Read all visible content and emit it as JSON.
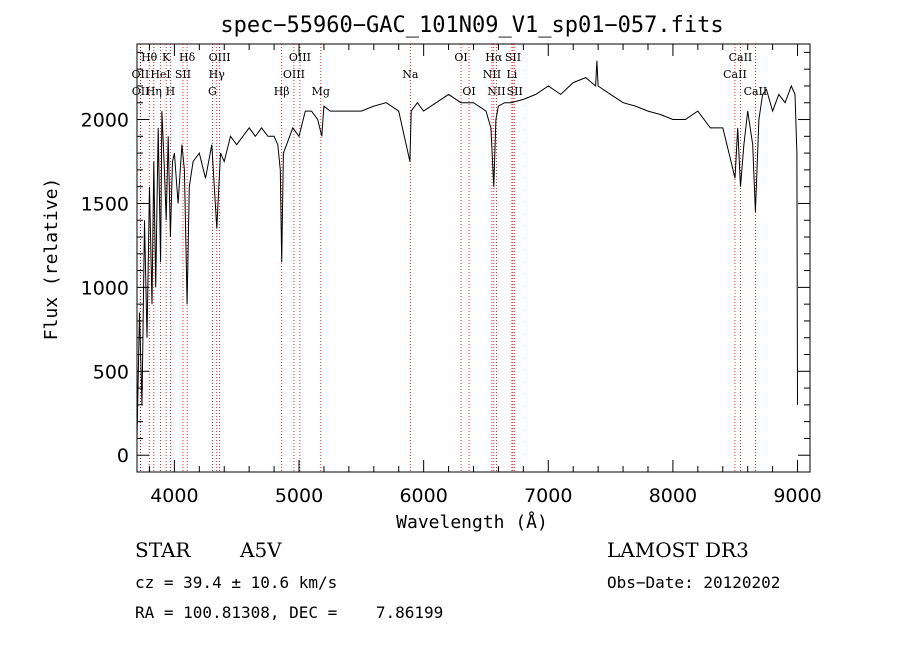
{
  "chart_data": {
    "type": "line",
    "title": "spec−55960−GAC_101N09_V1_sp01−057.fits",
    "xlabel": "Wavelength (Å)",
    "ylabel": "Flux (relative)",
    "xlim": [
      3700,
      9100
    ],
    "ylim": [
      -100,
      2450
    ],
    "xticks": [
      4000,
      5000,
      6000,
      7000,
      8000,
      9000
    ],
    "yticks": [
      0,
      500,
      1000,
      1500,
      2000
    ],
    "series": [
      {
        "name": "spectrum",
        "x": [
          3700,
          3720,
          3740,
          3760,
          3780,
          3800,
          3820,
          3835,
          3850,
          3870,
          3889,
          3900,
          3920,
          3934,
          3950,
          3968,
          3985,
          4000,
          4030,
          4060,
          4080,
          4102,
          4120,
          4150,
          4200,
          4250,
          4300,
          4340,
          4370,
          4400,
          4450,
          4500,
          4550,
          4600,
          4650,
          4700,
          4750,
          4800,
          4830,
          4850,
          4861,
          4875,
          4900,
          4950,
          5000,
          5050,
          5100,
          5150,
          5183,
          5200,
          5250,
          5300,
          5400,
          5500,
          5600,
          5700,
          5800,
          5890,
          5900,
          5950,
          6000,
          6100,
          6200,
          6300,
          6400,
          6500,
          6540,
          6563,
          6580,
          6600,
          6650,
          6700,
          6800,
          6900,
          7000,
          7100,
          7200,
          7300,
          7380,
          7390,
          7400,
          7500,
          7600,
          7700,
          7800,
          7900,
          8000,
          8100,
          8200,
          8300,
          8400,
          8450,
          8498,
          8520,
          8542,
          8570,
          8600,
          8640,
          8662,
          8690,
          8720,
          8750,
          8800,
          8850,
          8900,
          8950,
          8980,
          8995,
          9000
        ],
        "y": [
          100,
          850,
          300,
          1400,
          700,
          1600,
          900,
          1750,
          1000,
          1950,
          1150,
          2050,
          1700,
          1400,
          1900,
          1300,
          1750,
          1800,
          1500,
          1850,
          1700,
          900,
          1600,
          1750,
          1800,
          1650,
          1850,
          1350,
          1800,
          1750,
          1900,
          1850,
          1900,
          1950,
          1900,
          1950,
          1900,
          1900,
          1850,
          1700,
          1150,
          1800,
          1850,
          1950,
          1900,
          2050,
          2050,
          2000,
          1900,
          2080,
          2050,
          2050,
          2050,
          2050,
          2080,
          2100,
          2050,
          1750,
          2050,
          2100,
          2050,
          2100,
          2150,
          2100,
          2100,
          2050,
          1950,
          1600,
          2000,
          2080,
          2100,
          2100,
          2120,
          2150,
          2200,
          2150,
          2220,
          2250,
          2200,
          2350,
          2200,
          2150,
          2100,
          2080,
          2050,
          2030,
          2000,
          2000,
          2050,
          1950,
          1950,
          1800,
          1650,
          1950,
          1600,
          1850,
          2050,
          1850,
          1450,
          2000,
          2150,
          2180,
          2050,
          2150,
          2100,
          2200,
          2150,
          1800,
          300
        ]
      }
    ],
    "lines": [
      {
        "label": "Hθ",
        "wl": 3798,
        "row": 1
      },
      {
        "label": "OII",
        "wl": 3727,
        "row": 2
      },
      {
        "label": "OII",
        "wl": 3729,
        "row": 3
      },
      {
        "label": "Hη",
        "wl": 3835,
        "row": 3
      },
      {
        "label": "K",
        "wl": 3934,
        "row": 1
      },
      {
        "label": "HeI",
        "wl": 3889,
        "row": 2
      },
      {
        "label": "H",
        "wl": 3968,
        "row": 3
      },
      {
        "label": "SII",
        "wl": 4069,
        "row": 2
      },
      {
        "label": "Hδ",
        "wl": 4102,
        "row": 1
      },
      {
        "label": "OIII",
        "wl": 4363,
        "row": 1
      },
      {
        "label": "Hγ",
        "wl": 4340,
        "row": 2
      },
      {
        "label": "G",
        "wl": 4305,
        "row": 3
      },
      {
        "label": "Hβ",
        "wl": 4861,
        "row": 3
      },
      {
        "label": "OIII",
        "wl": 5007,
        "row": 1
      },
      {
        "label": "OIII",
        "wl": 4959,
        "row": 2
      },
      {
        "label": "Mg",
        "wl": 5175,
        "row": 3
      },
      {
        "label": "Na",
        "wl": 5893,
        "row": 2
      },
      {
        "label": "OI",
        "wl": 6300,
        "row": 1
      },
      {
        "label": "OI",
        "wl": 6364,
        "row": 3
      },
      {
        "label": "Hα",
        "wl": 6563,
        "row": 1
      },
      {
        "label": "NII",
        "wl": 6548,
        "row": 2
      },
      {
        "label": "NII",
        "wl": 6584,
        "row": 3
      },
      {
        "label": "SII",
        "wl": 6717,
        "row": 1
      },
      {
        "label": "Li",
        "wl": 6708,
        "row": 2
      },
      {
        "label": "SII",
        "wl": 6731,
        "row": 3
      },
      {
        "label": "CaII",
        "wl": 8542,
        "row": 1
      },
      {
        "label": "CaII",
        "wl": 8498,
        "row": 2
      },
      {
        "label": "CaII",
        "wl": 8662,
        "row": 3
      }
    ]
  },
  "info": {
    "class": "STAR",
    "subclass": "A5V",
    "survey": "LAMOST DR3",
    "cz": "cz = 39.4 ± 10.6 km/s",
    "obs_date": "Obs−Date: 20120202",
    "radec": "RA = 100.81308, DEC =    7.86199"
  },
  "colors": {
    "axis": "#000000",
    "spectrum": "#000000",
    "linemarker": "#cc0000"
  }
}
